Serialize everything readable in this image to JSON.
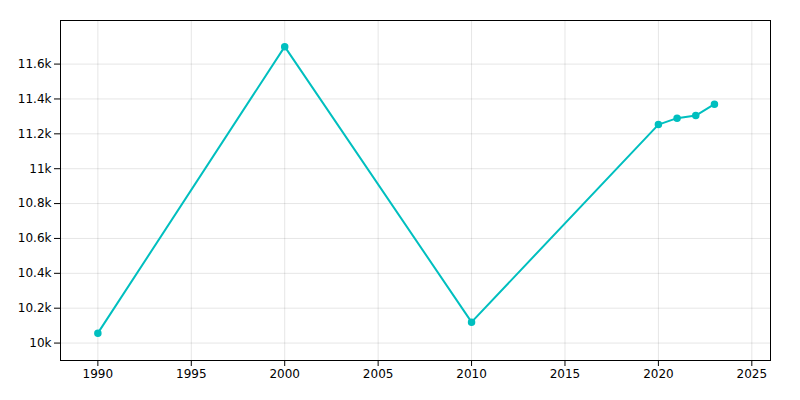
{
  "chart_data": {
    "type": "line",
    "x": [
      1990,
      2000,
      2010,
      2020,
      2021,
      2022,
      2023
    ],
    "values": [
      10057,
      11700,
      10120,
      11253,
      11290,
      11305,
      11370
    ],
    "color": "#00BFBF",
    "marker": "circle",
    "xlim": [
      1988,
      2026
    ],
    "ylim": [
      9900,
      11850
    ],
    "xticks": [
      1990,
      1995,
      2000,
      2005,
      2010,
      2015,
      2020,
      2025
    ],
    "yticks": [
      {
        "value": 10000,
        "label": "10k"
      },
      {
        "value": 10200,
        "label": "10.2k"
      },
      {
        "value": 10400,
        "label": "10.4k"
      },
      {
        "value": 10600,
        "label": "10.6k"
      },
      {
        "value": 10800,
        "label": "10.8k"
      },
      {
        "value": 11000,
        "label": "11k"
      },
      {
        "value": 11200,
        "label": "11.2k"
      },
      {
        "value": 11400,
        "label": "11.4k"
      },
      {
        "value": 11600,
        "label": "11.6k"
      }
    ],
    "grid": true
  }
}
